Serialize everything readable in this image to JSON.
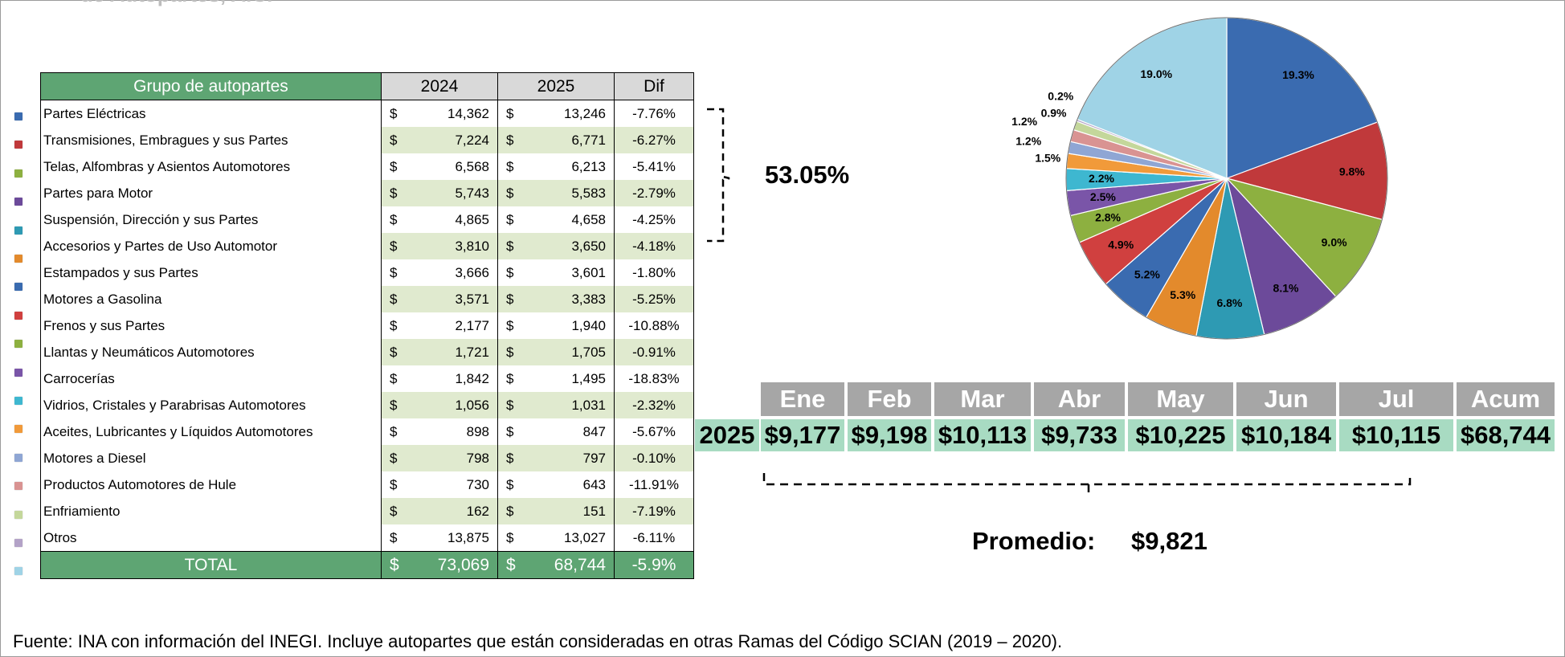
{
  "page": {
    "title_fragment": "de Autopartes, A.C.",
    "footnote": "Fuente: INA con información del INEGI. Incluye autopartes que están consideradas en otras Ramas del Código SCIAN (2019 – 2020)."
  },
  "table": {
    "headers": {
      "group": "Grupo de autopartes",
      "y2024": "2024",
      "y2025": "2025",
      "dif": "Dif"
    },
    "currency": "$",
    "rows": [
      {
        "name": "Partes Eléctricas",
        "v2024": "14,362",
        "v2025": "13,246",
        "dif": "-7.76%",
        "color": "#3a6bb0"
      },
      {
        "name": "Transmisiones, Embragues y sus Partes",
        "v2024": "7,224",
        "v2025": "6,771",
        "dif": "-6.27%",
        "color": "#c0393b"
      },
      {
        "name": "Telas, Alfombras y Asientos Automotores",
        "v2024": "6,568",
        "v2025": "6,213",
        "dif": "-5.41%",
        "color": "#8db040"
      },
      {
        "name": "Partes para Motor",
        "v2024": "5,743",
        "v2025": "5,583",
        "dif": "-2.79%",
        "color": "#6c4a9a"
      },
      {
        "name": "Suspensión, Dirección y sus Partes",
        "v2024": "4,865",
        "v2025": "4,658",
        "dif": "-4.25%",
        "color": "#2e9ab3"
      },
      {
        "name": "Accesorios y Partes de Uso Automotor",
        "v2024": "3,810",
        "v2025": "3,650",
        "dif": "-4.18%",
        "color": "#e38a2c"
      },
      {
        "name": "Estampados y sus Partes",
        "v2024": "3,666",
        "v2025": "3,601",
        "dif": "-1.80%",
        "color": "#3a6bb0"
      },
      {
        "name": "Motores a Gasolina",
        "v2024": "3,571",
        "v2025": "3,383",
        "dif": "-5.25%",
        "color": "#d0403f"
      },
      {
        "name": "Frenos y sus Partes",
        "v2024": "2,177",
        "v2025": "1,940",
        "dif": "-10.88%",
        "color": "#8db040"
      },
      {
        "name": "Llantas y Neumáticos Automotores",
        "v2024": "1,721",
        "v2025": "1,705",
        "dif": "-0.91%",
        "color": "#7a55a8"
      },
      {
        "name": "Carrocerías",
        "v2024": "1,842",
        "v2025": "1,495",
        "dif": "-18.83%",
        "color": "#3eb7d0"
      },
      {
        "name": "Vidrios, Cristales y Parabrisas Automotores",
        "v2024": "1,056",
        "v2025": "1,031",
        "dif": "-2.32%",
        "color": "#f19a3a"
      },
      {
        "name": "Aceites, Lubricantes y Líquidos Automotores",
        "v2024": "898",
        "v2025": "847",
        "dif": "-5.67%",
        "color": "#8fa6d4"
      },
      {
        "name": "Motores a Diesel",
        "v2024": "798",
        "v2025": "797",
        "dif": "-0.10%",
        "color": "#d99392"
      },
      {
        "name": "Productos Automotores de Hule",
        "v2024": "730",
        "v2025": "643",
        "dif": "-11.91%",
        "color": "#c4d79b"
      },
      {
        "name": "Enfriamiento",
        "v2024": "162",
        "v2025": "151",
        "dif": "-7.19%",
        "color": "#b3a2c7"
      },
      {
        "name": "Otros",
        "v2024": "13,875",
        "v2025": "13,027",
        "dif": "-6.11%",
        "color": "#9fd3e6"
      }
    ],
    "total": {
      "label": "TOTAL",
      "v2024": "73,069",
      "v2025": "68,744",
      "dif": "-5.9%"
    }
  },
  "top5_share": "53.05%",
  "monthly": {
    "year": "2025",
    "months": [
      "Ene",
      "Feb",
      "Mar",
      "Abr",
      "May",
      "Jun",
      "Jul",
      "Acum"
    ],
    "values": [
      "$9,177",
      "$9,198",
      "$10,113",
      "$9,733",
      "$10,225",
      "$10,184",
      "$10,115",
      "$68,744"
    ],
    "average_label": "Promedio:",
    "average_value": "$9,821"
  },
  "chart_data": {
    "type": "pie",
    "title": "",
    "start": "12 o'clock, clockwise",
    "slices": [
      {
        "category": "Partes Eléctricas",
        "value": 19.3,
        "label": "19.3%",
        "color": "#3a6bb0"
      },
      {
        "category": "Transmisiones, Embragues y sus Partes",
        "value": 9.8,
        "label": "9.8%",
        "color": "#c0393b"
      },
      {
        "category": "Telas, Alfombras y Asientos Automotores",
        "value": 9.0,
        "label": "9.0%",
        "color": "#8db040"
      },
      {
        "category": "Partes para Motor",
        "value": 8.1,
        "label": "8.1%",
        "color": "#6c4a9a"
      },
      {
        "category": "Suspensión, Dirección y sus Partes",
        "value": 6.8,
        "label": "6.8%",
        "color": "#2e9ab3"
      },
      {
        "category": "Accesorios y Partes de Uso Automotor",
        "value": 5.3,
        "label": "5.3%",
        "color": "#e38a2c"
      },
      {
        "category": "Estampados y sus Partes",
        "value": 5.2,
        "label": "5.2%",
        "color": "#3a6bb0"
      },
      {
        "category": "Motores a Gasolina",
        "value": 4.9,
        "label": "4.9%",
        "color": "#d0403f"
      },
      {
        "category": "Frenos y sus Partes",
        "value": 2.8,
        "label": "2.8%",
        "color": "#8db040"
      },
      {
        "category": "Llantas y Neumáticos Automotores",
        "value": 2.5,
        "label": "2.5%",
        "color": "#7a55a8"
      },
      {
        "category": "Carrocerías",
        "value": 2.2,
        "label": "2.2%",
        "color": "#3eb7d0"
      },
      {
        "category": "Vidrios, Cristales y Parabrisas Automotores",
        "value": 1.5,
        "label": "1.5%",
        "color": "#f19a3a"
      },
      {
        "category": "Aceites, Lubricantes y Líquidos Automotores",
        "value": 1.2,
        "label": "1.2%",
        "color": "#8fa6d4"
      },
      {
        "category": "Motores a Diesel",
        "value": 1.2,
        "label": "1.2%",
        "color": "#d99392"
      },
      {
        "category": "Productos Automotores de Hule",
        "value": 0.9,
        "label": "0.9%",
        "color": "#c4d79b"
      },
      {
        "category": "Enfriamiento",
        "value": 0.2,
        "label": "0.2%",
        "color": "#b3a2c7"
      },
      {
        "category": "Otros",
        "value": 19.0,
        "label": "19.0%",
        "color": "#9fd3e6"
      }
    ]
  }
}
